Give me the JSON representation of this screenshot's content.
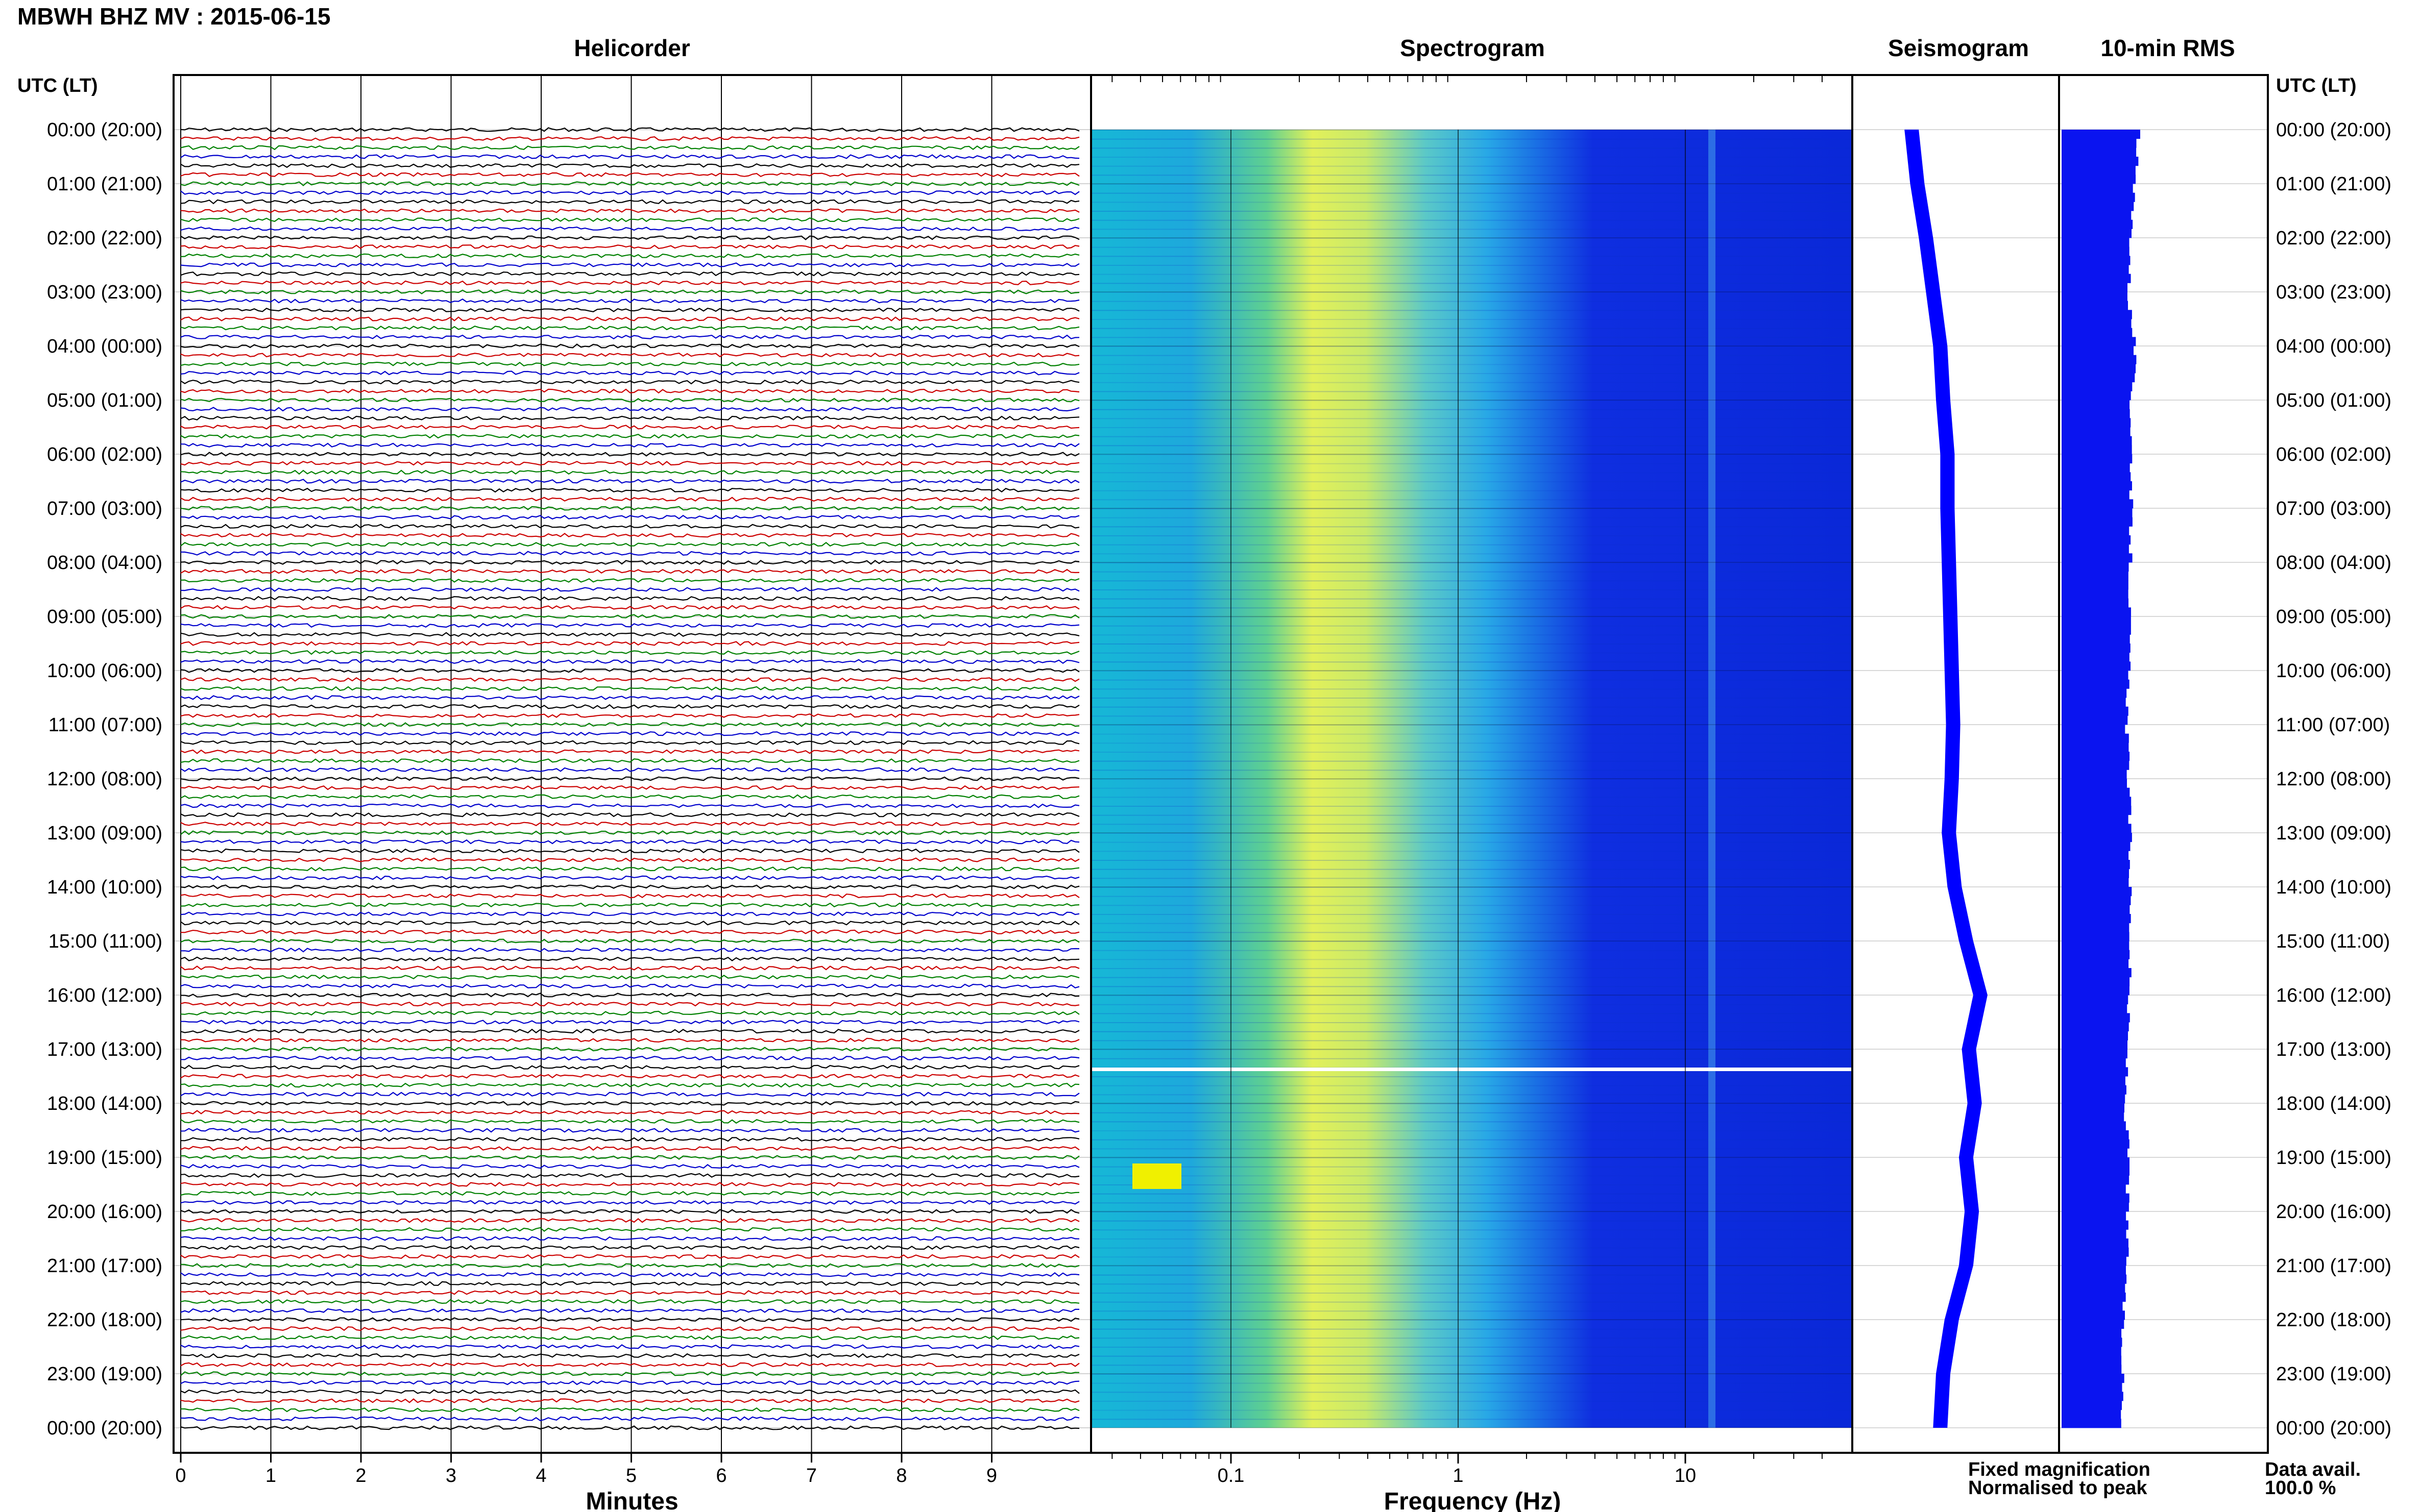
{
  "header": {
    "title": "MBWH BHZ MV : 2015-06-15",
    "time_col_label": "UTC (LT)"
  },
  "panels": {
    "helicorder": "Helicorder",
    "spectrogram": "Spectrogram",
    "seismogram": "Seismogram",
    "rms": "10-min RMS"
  },
  "time_labels": [
    "00:00 (20:00)",
    "01:00 (21:00)",
    "02:00 (22:00)",
    "03:00 (23:00)",
    "04:00 (00:00)",
    "05:00 (01:00)",
    "06:00 (02:00)",
    "07:00 (03:00)",
    "08:00 (04:00)",
    "09:00 (05:00)",
    "10:00 (06:00)",
    "11:00 (07:00)",
    "12:00 (08:00)",
    "13:00 (09:00)",
    "14:00 (10:00)",
    "15:00 (11:00)",
    "16:00 (12:00)",
    "17:00 (13:00)",
    "18:00 (14:00)",
    "19:00 (15:00)",
    "20:00 (16:00)",
    "21:00 (17:00)",
    "22:00 (18:00)",
    "23:00 (19:00)",
    "00:00 (20:00)"
  ],
  "helicorder": {
    "xlabel": "Minutes",
    "xticks": [
      0,
      1,
      2,
      3,
      4,
      5,
      6,
      7,
      8,
      9
    ],
    "trace_colors": [
      "#000000",
      "#cc0000",
      "#008000",
      "#0000cc"
    ]
  },
  "spectrogram": {
    "xlabel": "Frequency (Hz)",
    "xticks": [
      "0.1",
      "1",
      "10"
    ],
    "xscale": "log"
  },
  "legend": {
    "fixed": "Fixed magnification",
    "normalised": "Normalised to peak",
    "fixed_color": "#0000ff",
    "normalised_color": "#ff0000"
  },
  "data_avail": {
    "label": "Data avail.",
    "value": "100.0 %"
  },
  "chart_data": {
    "type": "line",
    "title": "MBWH BHZ MV : 2015-06-15",
    "xlabel": "Minutes",
    "x_range": [
      0,
      10
    ],
    "rows_per_hour": 6,
    "hours": 24,
    "seismogram_envelope": {
      "hours": [
        0,
        1,
        2,
        3,
        4,
        5,
        6,
        7,
        8,
        9,
        10,
        11,
        12,
        13,
        14,
        15,
        16,
        17,
        18,
        19,
        20,
        21,
        22,
        23,
        24
      ],
      "values": [
        0.3,
        0.34,
        0.4,
        0.45,
        0.5,
        0.52,
        0.55,
        0.55,
        0.56,
        0.57,
        0.58,
        0.59,
        0.58,
        0.56,
        0.6,
        0.68,
        0.78,
        0.7,
        0.74,
        0.68,
        0.72,
        0.68,
        0.58,
        0.52,
        0.5
      ]
    },
    "rms_10min": {
      "hours": [
        0,
        1,
        2,
        3,
        4,
        5,
        6,
        7,
        8,
        9,
        10,
        11,
        12,
        13,
        14,
        15,
        16,
        17,
        18,
        19,
        20,
        21,
        22,
        23,
        24
      ],
      "values": [
        0.95,
        0.88,
        0.85,
        0.82,
        0.9,
        0.85,
        0.86,
        0.85,
        0.84,
        0.83,
        0.82,
        0.8,
        0.82,
        0.84,
        0.84,
        0.84,
        0.82,
        0.8,
        0.78,
        0.82,
        0.8,
        0.8,
        0.74,
        0.75,
        0.74
      ]
    }
  }
}
